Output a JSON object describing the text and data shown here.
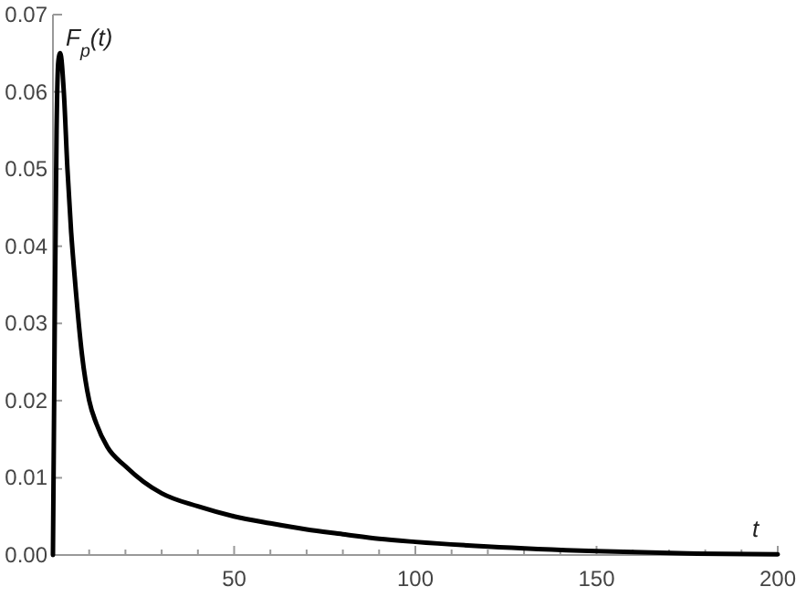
{
  "chart_data": {
    "type": "line",
    "xlabel": "t",
    "ylabel": "F$_{p}$(t)",
    "x": [
      0,
      0.5,
      1,
      1.5,
      2,
      3,
      4,
      5,
      6,
      8,
      10,
      12,
      15,
      20,
      25,
      30,
      40,
      50,
      60,
      70,
      80,
      90,
      100,
      120,
      150,
      175,
      200
    ],
    "series": [
      {
        "color": "#000000",
        "values": [
          0,
          0.03,
          0.055,
          0.064,
          0.065,
          0.06,
          0.05,
          0.042,
          0.036,
          0.026,
          0.02,
          0.017,
          0.014,
          0.0115,
          0.0095,
          0.008,
          0.0063,
          0.005,
          0.0041,
          0.0033,
          0.0027,
          0.0021,
          0.0017,
          0.0011,
          0.0005,
          0.0002,
          0.0001
        ]
      }
    ],
    "xlim": [
      0,
      200
    ],
    "xticks": [
      {
        "value": 10,
        "label": null
      },
      {
        "value": 20,
        "label": null
      },
      {
        "value": 30,
        "label": null
      },
      {
        "value": 40,
        "label": null
      },
      50,
      {
        "value": 60,
        "label": null
      },
      {
        "value": 70,
        "label": null
      },
      {
        "value": 80,
        "label": null
      },
      {
        "value": 90,
        "label": null
      },
      100,
      {
        "value": 110,
        "label": null
      },
      {
        "value": 120,
        "label": null
      },
      {
        "value": 130,
        "label": null
      },
      {
        "value": 140,
        "label": null
      },
      150,
      {
        "value": 160,
        "label": null
      },
      {
        "value": 170,
        "label": null
      },
      {
        "value": 180,
        "label": null
      },
      {
        "value": 190,
        "label": null
      },
      200
    ],
    "ylim": [
      0,
      0.07
    ],
    "yticks": [
      {
        "value": 0,
        "label": "0.00"
      },
      {
        "value": 0.01,
        "label": "0.01"
      },
      {
        "value": 0.02,
        "label": "0.02"
      },
      {
        "value": 0.03,
        "label": "0.03"
      },
      {
        "value": 0.04,
        "label": "0.04"
      },
      {
        "value": 0.05,
        "label": "0.05"
      },
      {
        "value": 0.06,
        "label": "0.06"
      },
      {
        "value": 0.07,
        "label": "0.07"
      }
    ],
    "grid": false,
    "marker": "none",
    "line_style": "solid"
  }
}
